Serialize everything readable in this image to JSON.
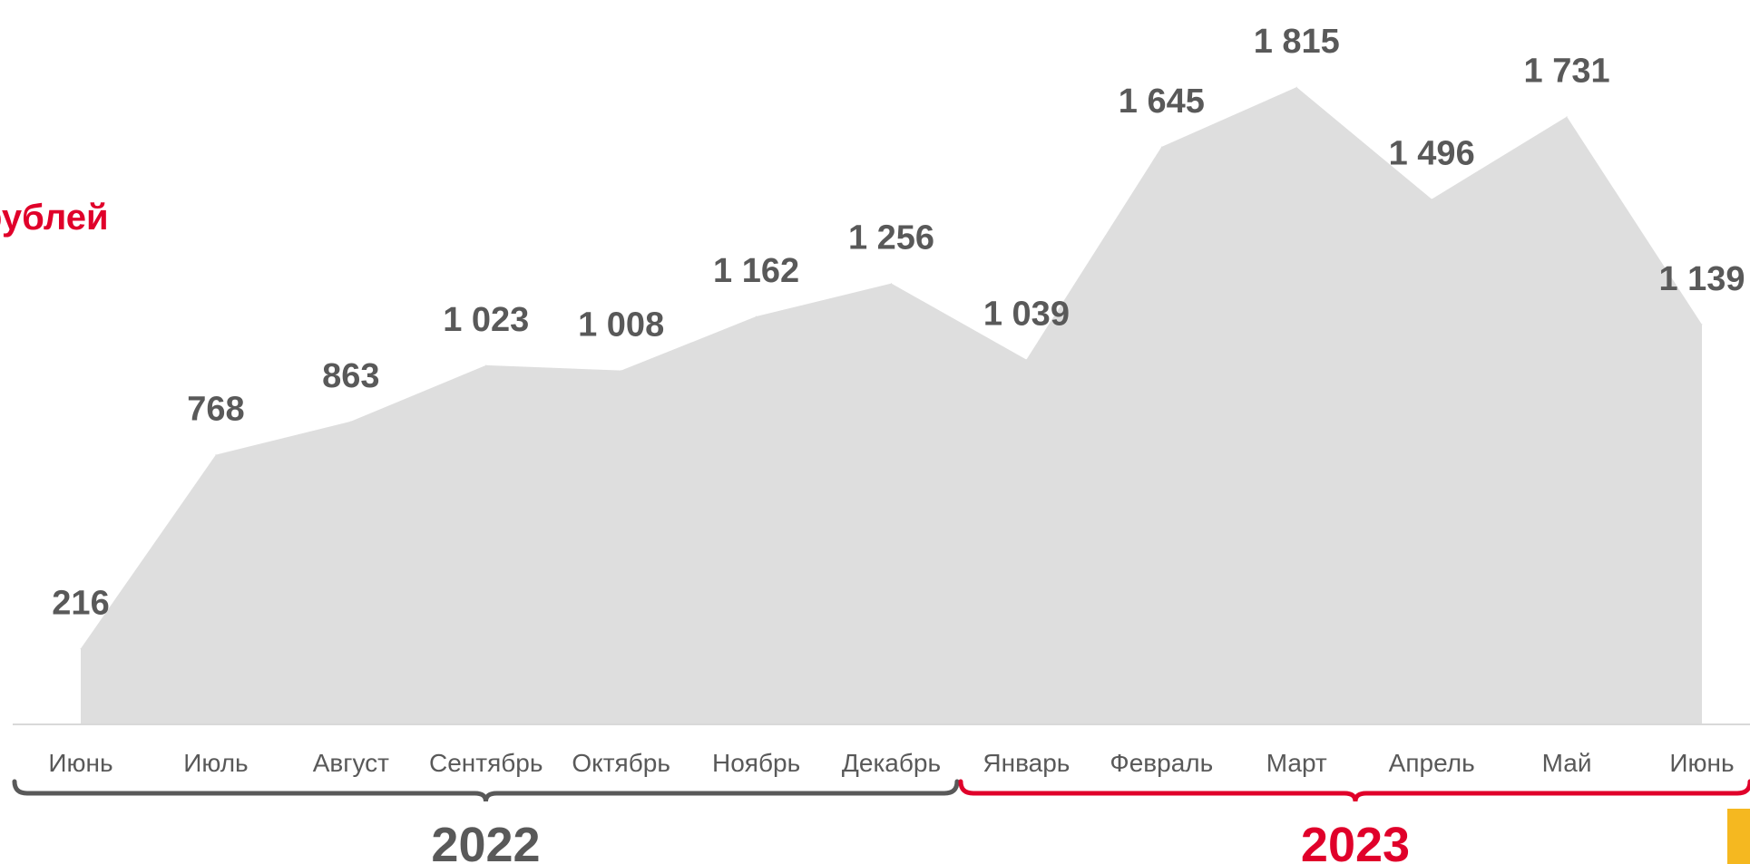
{
  "unit_label": "рублей",
  "chart_data": {
    "type": "area",
    "categories": [
      "Июнь",
      "Июль",
      "Август",
      "Сентябрь",
      "Октябрь",
      "Ноябрь",
      "Декабрь",
      "Январь",
      "Февраль",
      "Март",
      "Апрель",
      "Май",
      "Июнь"
    ],
    "values": [
      216,
      768,
      863,
      1023,
      1008,
      1162,
      1256,
      1039,
      1645,
      1815,
      1496,
      1731,
      1139
    ],
    "data_labels": [
      "216",
      "768",
      "863",
      "1 023",
      "1 008",
      "1 162",
      "1 256",
      "1 039",
      "1 645",
      "1 815",
      "1 496",
      "1 731",
      "1 139"
    ],
    "groups": [
      {
        "label": "2022",
        "from": 0,
        "to": 6,
        "color": "#595959"
      },
      {
        "label": "2023",
        "from": 7,
        "to": 12,
        "color": "#e0002a"
      }
    ],
    "title": "",
    "xlabel": "",
    "ylabel": "",
    "ylim": [
      0,
      1960
    ],
    "area_color": "#dedede",
    "axis_color": "#d9d9d9",
    "grid": false,
    "legend": false
  },
  "accent_colors": {
    "red": "#e0002a",
    "dark_gray": "#595959",
    "yellow": "#f5b820"
  }
}
